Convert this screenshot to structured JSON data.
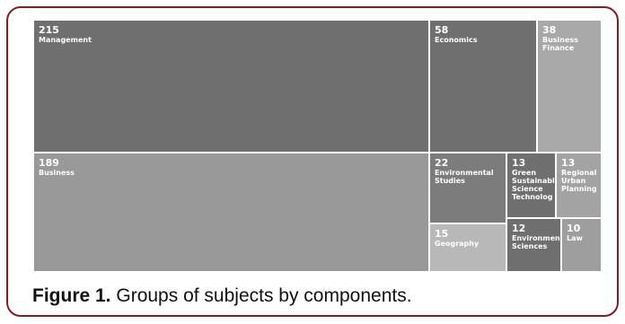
{
  "figure": {
    "caption_label": "Figure 1.",
    "caption_text": " Groups of subjects by components."
  },
  "colors": {
    "frame_border": "#8a1c1c"
  },
  "chart_data": {
    "type": "treemap",
    "items": [
      {
        "value": 215,
        "label": "Management",
        "color": "#6f6f6f"
      },
      {
        "value": 189,
        "label": "Business",
        "color": "#999999"
      },
      {
        "value": 58,
        "label": "Economics",
        "color": "#6f6f6f"
      },
      {
        "value": 38,
        "label": "Business\nFinance",
        "color": "#a8a8a8"
      },
      {
        "value": 22,
        "label": "Environmental\nStudies",
        "color": "#7c7c7c"
      },
      {
        "value": 15,
        "label": "Geography",
        "color": "#b8b8b8"
      },
      {
        "value": 13,
        "label": "Green\nSustainabl\nScience\nTechnolog",
        "color": "#6f6f6f"
      },
      {
        "value": 13,
        "label": "Regional\nUrban\nPlanning",
        "color": "#a3a3a3"
      },
      {
        "value": 12,
        "label": "Environmen\nSciences",
        "color": "#6f6f6f"
      },
      {
        "value": 10,
        "label": "Law",
        "color": "#9e9e9e"
      }
    ]
  }
}
